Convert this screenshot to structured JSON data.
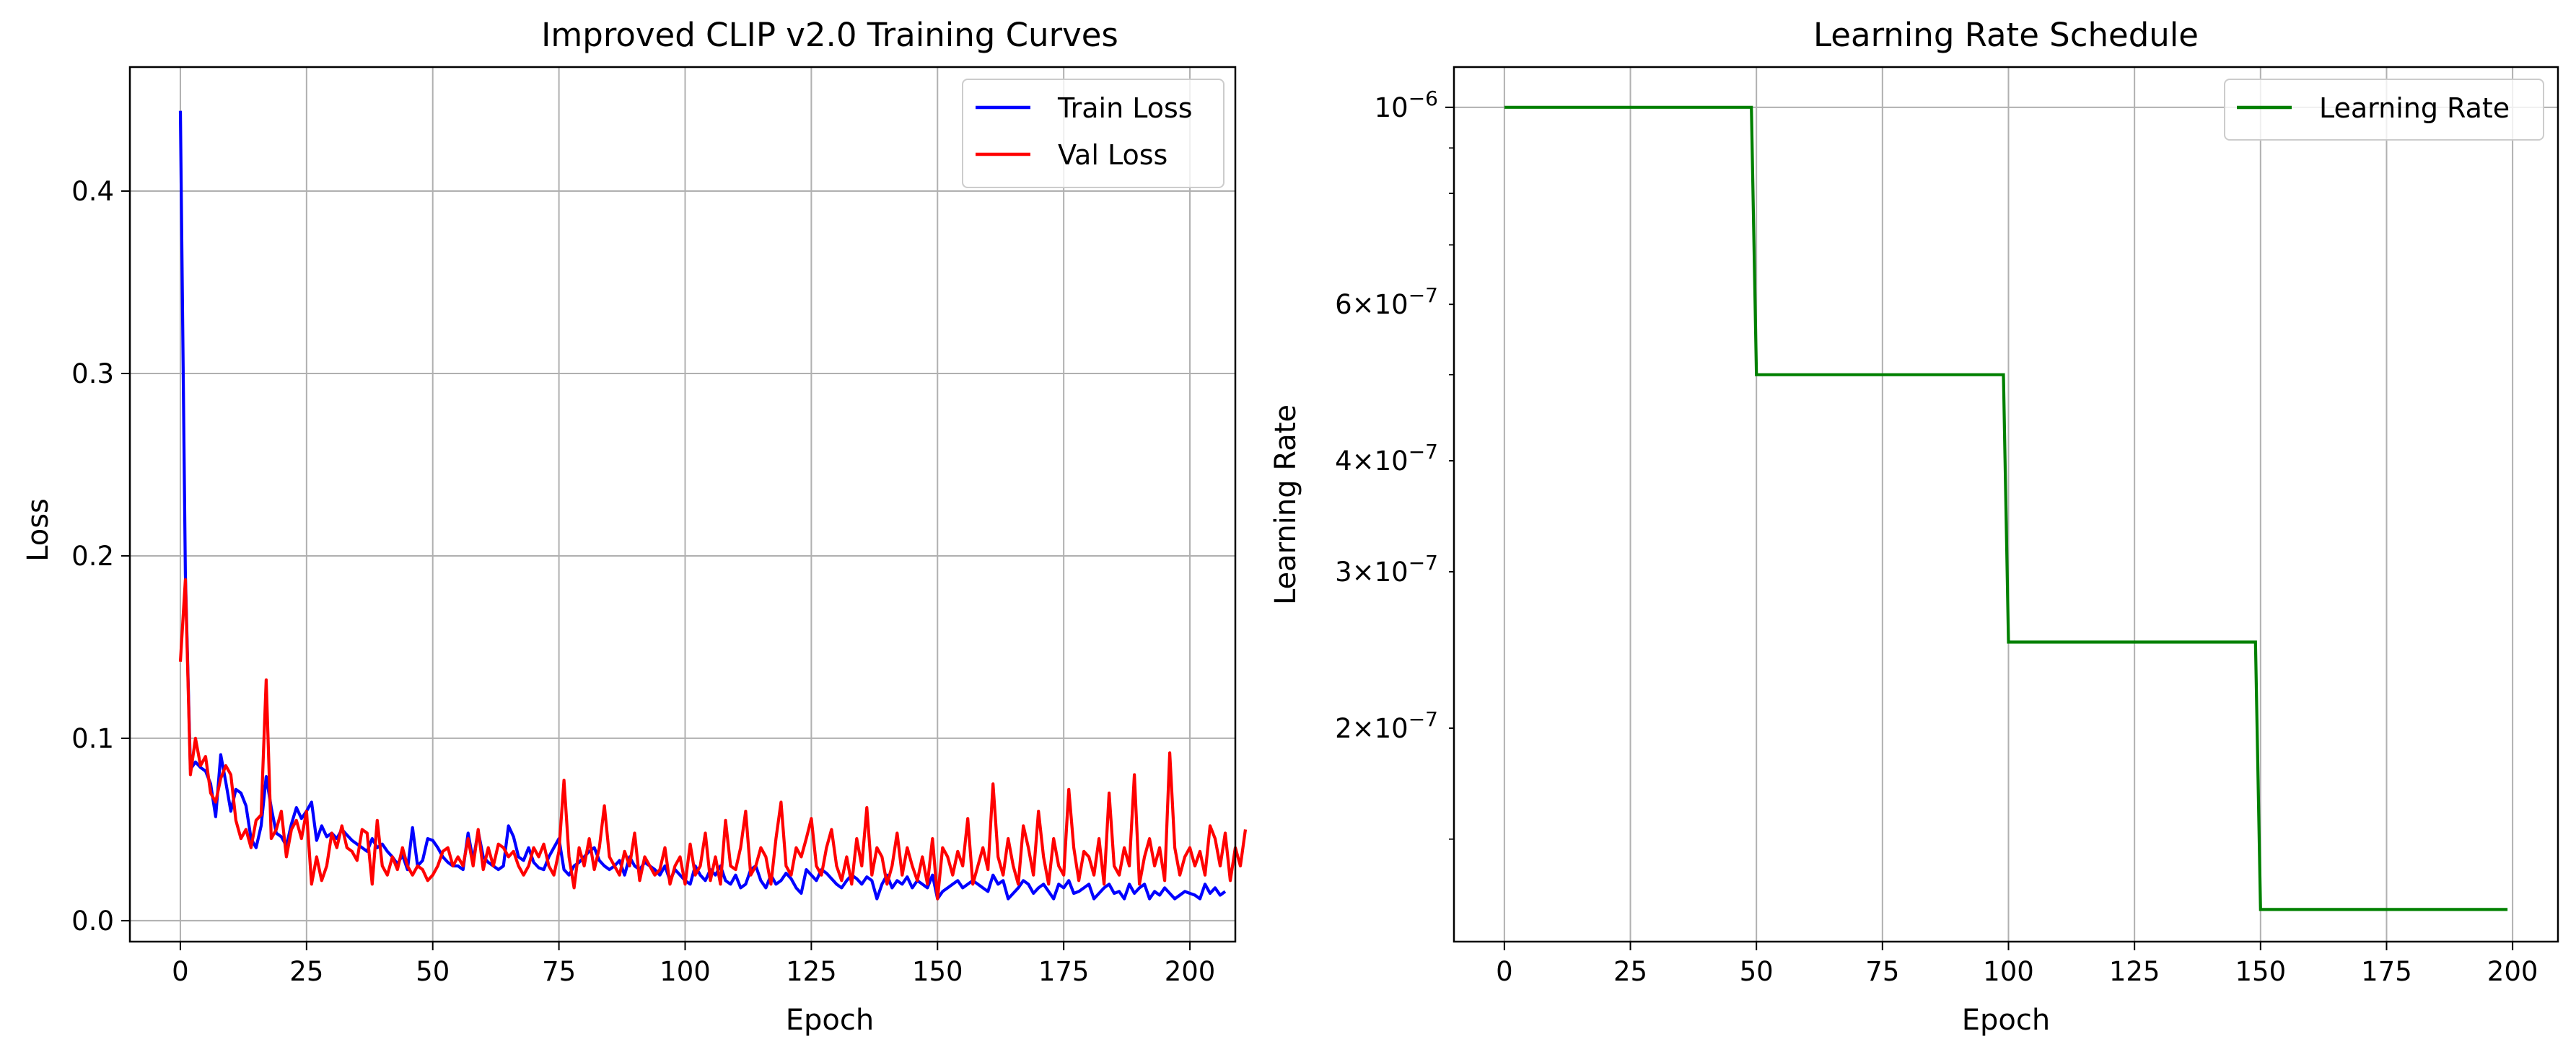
{
  "chart_data": [
    {
      "type": "line",
      "title": "Improved CLIP v2.0 Training Curves",
      "xlabel": "Epoch",
      "ylabel": "Loss",
      "xlim": [
        -10,
        209
      ],
      "ylim": [
        -0.0115,
        0.468
      ],
      "xticks": [
        0,
        25,
        50,
        75,
        100,
        125,
        150,
        175,
        200
      ],
      "yticks": [
        0.0,
        0.1,
        0.2,
        0.3,
        0.4
      ],
      "xtick_labels": [
        "0",
        "25",
        "50",
        "75",
        "100",
        "125",
        "150",
        "175",
        "200"
      ],
      "ytick_labels": [
        "0.0",
        "0.1",
        "0.2",
        "0.3",
        "0.4"
      ],
      "grid": true,
      "legend": "top-right",
      "series": [
        {
          "name": "Train Loss",
          "color": "#0000ff",
          "values": [
            0.444,
            0.19,
            0.083,
            0.087,
            0.084,
            0.082,
            0.075,
            0.057,
            0.091,
            0.076,
            0.06,
            0.072,
            0.07,
            0.063,
            0.045,
            0.04,
            0.052,
            0.079,
            0.062,
            0.048,
            0.046,
            0.041,
            0.053,
            0.062,
            0.056,
            0.06,
            0.065,
            0.044,
            0.052,
            0.046,
            0.048,
            0.045,
            0.05,
            0.047,
            0.044,
            0.042,
            0.04,
            0.038,
            0.045,
            0.04,
            0.042,
            0.038,
            0.035,
            0.031,
            0.036,
            0.028,
            0.051,
            0.03,
            0.033,
            0.045,
            0.044,
            0.04,
            0.035,
            0.032,
            0.03,
            0.03,
            0.028,
            0.048,
            0.033,
            0.049,
            0.035,
            0.032,
            0.03,
            0.028,
            0.03,
            0.052,
            0.046,
            0.035,
            0.033,
            0.04,
            0.032,
            0.029,
            0.028,
            0.035,
            0.04,
            0.045,
            0.028,
            0.025,
            0.03,
            0.032,
            0.035,
            0.038,
            0.04,
            0.033,
            0.03,
            0.028,
            0.03,
            0.033,
            0.025,
            0.035,
            0.03,
            0.028,
            0.032,
            0.03,
            0.028,
            0.025,
            0.03,
            0.022,
            0.028,
            0.025,
            0.022,
            0.02,
            0.03,
            0.025,
            0.022,
            0.028,
            0.025,
            0.03,
            0.022,
            0.02,
            0.025,
            0.018,
            0.02,
            0.028,
            0.03,
            0.022,
            0.018,
            0.025,
            0.02,
            0.022,
            0.026,
            0.023,
            0.018,
            0.015,
            0.028,
            0.025,
            0.022,
            0.028,
            0.026,
            0.023,
            0.02,
            0.018,
            0.022,
            0.025,
            0.023,
            0.02,
            0.024,
            0.022,
            0.012,
            0.02,
            0.025,
            0.018,
            0.022,
            0.02,
            0.024,
            0.018,
            0.022,
            0.02,
            0.018,
            0.025,
            0.012,
            0.016,
            0.018,
            0.02,
            0.022,
            0.018,
            0.02,
            0.022,
            0.02,
            0.018,
            0.016,
            0.025,
            0.02,
            0.022,
            0.012,
            0.015,
            0.018,
            0.022,
            0.02,
            0.015,
            0.018,
            0.02,
            0.016,
            0.012,
            0.02,
            0.018,
            0.022,
            0.015,
            0.016,
            0.018,
            0.02,
            0.012,
            0.015,
            0.018,
            0.02,
            0.015,
            0.016,
            0.012,
            0.02,
            0.015,
            0.018,
            0.02,
            0.012,
            0.016,
            0.014,
            0.018,
            0.015,
            0.012,
            0.014,
            0.016,
            0.015,
            0.014,
            0.012,
            0.02,
            0.015,
            0.018,
            0.014,
            0.016
          ]
        },
        {
          "name": "Val Loss",
          "color": "#ff0000",
          "values": [
            0.142,
            0.187,
            0.08,
            0.1,
            0.085,
            0.09,
            0.07,
            0.065,
            0.078,
            0.085,
            0.08,
            0.055,
            0.045,
            0.05,
            0.04,
            0.055,
            0.058,
            0.132,
            0.045,
            0.05,
            0.06,
            0.035,
            0.05,
            0.055,
            0.045,
            0.06,
            0.02,
            0.035,
            0.022,
            0.03,
            0.048,
            0.04,
            0.052,
            0.04,
            0.038,
            0.033,
            0.05,
            0.048,
            0.02,
            0.055,
            0.03,
            0.025,
            0.035,
            0.028,
            0.04,
            0.03,
            0.025,
            0.03,
            0.028,
            0.022,
            0.025,
            0.03,
            0.038,
            0.04,
            0.03,
            0.035,
            0.03,
            0.045,
            0.03,
            0.05,
            0.028,
            0.04,
            0.03,
            0.042,
            0.04,
            0.035,
            0.038,
            0.03,
            0.025,
            0.03,
            0.04,
            0.035,
            0.042,
            0.03,
            0.025,
            0.038,
            0.077,
            0.035,
            0.018,
            0.04,
            0.03,
            0.045,
            0.028,
            0.04,
            0.063,
            0.035,
            0.03,
            0.025,
            0.038,
            0.03,
            0.048,
            0.022,
            0.035,
            0.03,
            0.025,
            0.028,
            0.04,
            0.02,
            0.03,
            0.035,
            0.02,
            0.042,
            0.025,
            0.03,
            0.048,
            0.022,
            0.035,
            0.02,
            0.055,
            0.03,
            0.028,
            0.04,
            0.06,
            0.025,
            0.03,
            0.04,
            0.035,
            0.02,
            0.045,
            0.065,
            0.03,
            0.025,
            0.04,
            0.035,
            0.045,
            0.056,
            0.03,
            0.025,
            0.04,
            0.05,
            0.03,
            0.022,
            0.035,
            0.02,
            0.045,
            0.03,
            0.062,
            0.025,
            0.04,
            0.035,
            0.02,
            0.03,
            0.048,
            0.025,
            0.04,
            0.03,
            0.022,
            0.035,
            0.02,
            0.045,
            0.012,
            0.04,
            0.035,
            0.025,
            0.038,
            0.03,
            0.056,
            0.02,
            0.03,
            0.04,
            0.028,
            0.075,
            0.035,
            0.025,
            0.045,
            0.03,
            0.02,
            0.052,
            0.04,
            0.025,
            0.06,
            0.035,
            0.02,
            0.045,
            0.03,
            0.025,
            0.072,
            0.04,
            0.022,
            0.038,
            0.035,
            0.025,
            0.045,
            0.02,
            0.07,
            0.03,
            0.025,
            0.04,
            0.03,
            0.08,
            0.02,
            0.035,
            0.045,
            0.03,
            0.04,
            0.022,
            0.092,
            0.04,
            0.025,
            0.035,
            0.04,
            0.03,
            0.038,
            0.025,
            0.052,
            0.045,
            0.03,
            0.048,
            0.022,
            0.04,
            0.03,
            0.05
          ]
        }
      ]
    },
    {
      "type": "line",
      "title": "Learning Rate Schedule",
      "xlabel": "Epoch",
      "ylabel": "Learning Rate",
      "xlim": [
        -10,
        209
      ],
      "ylim": [
        1.15e-07,
        1.11e-06
      ],
      "yscale": "log",
      "xticks": [
        0,
        25,
        50,
        75,
        100,
        125,
        150,
        175,
        200
      ],
      "xtick_labels": [
        "0",
        "25",
        "50",
        "75",
        "100",
        "125",
        "150",
        "175",
        "200"
      ],
      "ytick_labels": [
        {
          "value": 1e-06,
          "mantissa": "",
          "base": "10",
          "exp": "−6"
        },
        {
          "value": 6e-07,
          "mantissa": "6×",
          "base": "10",
          "exp": "−7"
        },
        {
          "value": 4e-07,
          "mantissa": "4×",
          "base": "10",
          "exp": "−7"
        },
        {
          "value": 3e-07,
          "mantissa": "3×",
          "base": "10",
          "exp": "−7"
        },
        {
          "value": 2e-07,
          "mantissa": "2×",
          "base": "10",
          "exp": "−7"
        }
      ],
      "minor_yticks": [
        9e-07,
        8e-07,
        7e-07,
        5e-07,
        1.5e-07
      ],
      "grid": true,
      "legend": "top-right",
      "series": [
        {
          "name": "Learning Rate",
          "color": "#008000",
          "steps": [
            {
              "x_start": 0,
              "x_end": 49,
              "value": 1e-06
            },
            {
              "x_start": 50,
              "x_end": 99,
              "value": 5e-07
            },
            {
              "x_start": 100,
              "x_end": 149,
              "value": 2.5e-07
            },
            {
              "x_start": 150,
              "x_end": 199,
              "value": 1.25e-07
            }
          ]
        }
      ]
    }
  ]
}
